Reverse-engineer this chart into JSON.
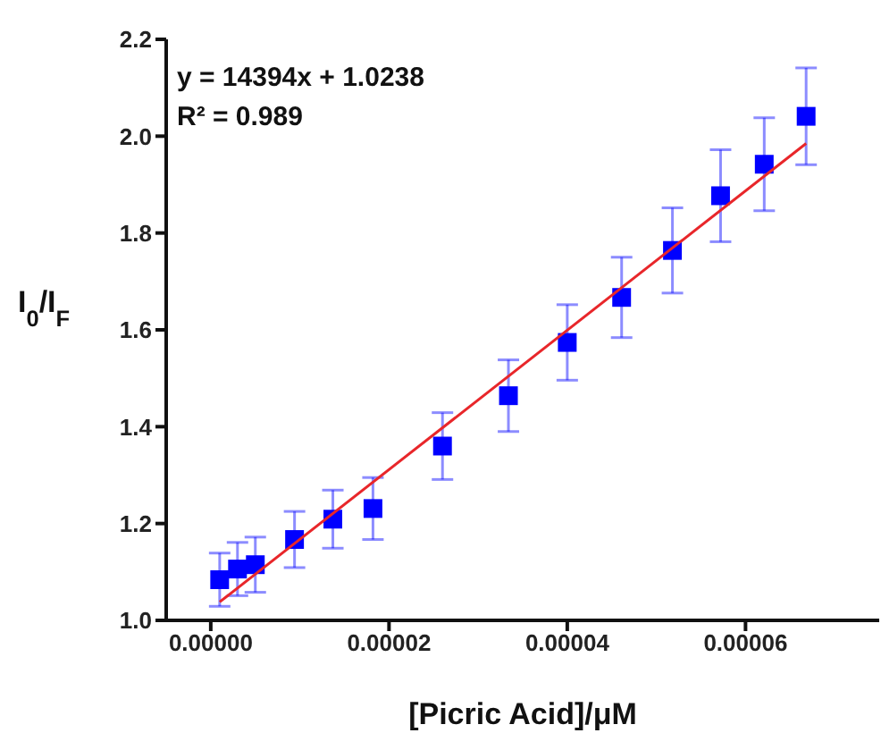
{
  "chart_data": {
    "type": "scatter",
    "xlabel": "[Picric Acid]/μM",
    "ylabel": "I$_{0}$/I$_{F}$",
    "annotations": [
      "y = 14394x + 1.0238",
      "R² = 0.989"
    ],
    "xlim": [
      -5e-06,
      7.5e-05
    ],
    "ylim": [
      1.0,
      2.2
    ],
    "xticks": [
      {
        "value": 0,
        "label": "0.00000"
      },
      {
        "value": 2e-05,
        "label": "0.00002"
      },
      {
        "value": 4e-05,
        "label": "0.00004"
      },
      {
        "value": 6e-05,
        "label": "0.00006"
      }
    ],
    "yticks": [
      {
        "value": 1.0,
        "label": "1.0"
      },
      {
        "value": 1.2,
        "label": "1.2"
      },
      {
        "value": 1.4,
        "label": "1.4"
      },
      {
        "value": 1.6,
        "label": "1.6"
      },
      {
        "value": 1.8,
        "label": "1.8"
      },
      {
        "value": 2.0,
        "label": "2.0"
      },
      {
        "value": 2.2,
        "label": "2.2"
      }
    ],
    "series": [
      {
        "color": "#0000ff",
        "marker": "square",
        "x": [
          1e-06,
          3e-06,
          5e-06,
          9.4e-06,
          1.37e-05,
          1.82e-05,
          2.6e-05,
          3.34e-05,
          4e-05,
          4.61e-05,
          5.18e-05,
          5.72e-05,
          6.21e-05,
          6.68e-05
        ],
        "values": [
          1.084,
          1.106,
          1.115,
          1.167,
          1.209,
          1.231,
          1.36,
          1.464,
          1.574,
          1.667,
          1.764,
          1.877,
          1.942,
          2.041
        ],
        "errors": [
          0.055,
          0.055,
          0.057,
          0.058,
          0.06,
          0.064,
          0.069,
          0.074,
          0.078,
          0.083,
          0.088,
          0.095,
          0.096,
          0.1
        ]
      },
      {
        "type": "line",
        "color": "#e8262a",
        "marker": "none",
        "x": [
          1e-06,
          6.68e-05
        ],
        "values": [
          1.038,
          1.985
        ]
      }
    ]
  }
}
